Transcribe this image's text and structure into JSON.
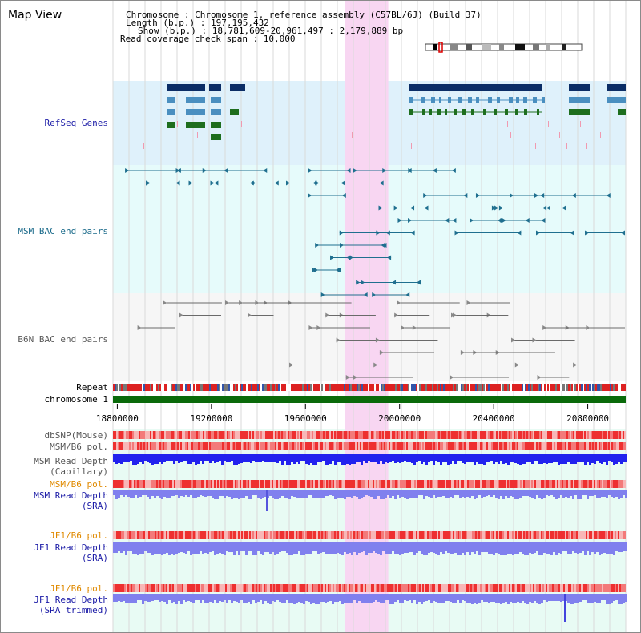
{
  "view": {
    "title": "Map View",
    "region_start_bp": 18781609,
    "region_end_bp": 20961497,
    "highlight_start_bp": 19768000,
    "highlight_end_bp": 19952000
  },
  "info": {
    "chromosome": "Chromosome      : Chromosome 1, reference assembly (C57BL/6J) (Build 37)",
    "length": "Length (b.p.) : 197,195,432",
    "show": "Show (b.p.) : 18,781,609-20,961,497 : 2,179,889 bp",
    "coverage": "Read coverage check span : 10,000"
  },
  "tracks": {
    "refseq": {
      "label": "RefSeq Genes",
      "color": "#1a1aa6"
    },
    "msm_bac": {
      "label": "MSM BAC end pairs",
      "color": "#1a6a8a"
    },
    "b6n_bac": {
      "label": "B6N BAC end pairs",
      "color": "#5a5a5a"
    },
    "repeat": {
      "label": "Repeat"
    },
    "chromosome": {
      "label": "chromosome 1",
      "color": "#0a6a0a"
    }
  },
  "axis": {
    "ticks": [
      {
        "value": 18800000,
        "label": "18800000"
      },
      {
        "value": 19200000,
        "label": "19200000"
      },
      {
        "value": 19600000,
        "label": "19600000"
      },
      {
        "value": 20000000,
        "label": "20000000"
      },
      {
        "value": 20400000,
        "label": "20400000"
      },
      {
        "value": 20800000,
        "label": "20800000"
      }
    ]
  },
  "lower_tracks": [
    {
      "label": "dbSNP(Mouse)",
      "color": "#555555"
    },
    {
      "label": "MSM/B6 pol.",
      "color": "#555555"
    },
    {
      "label": "MSM Read Depth\n(Capillary)",
      "color": "#555555"
    },
    {
      "label": "MSM/B6 pol.",
      "color": "#e08a00"
    },
    {
      "label": "MSM Read Depth\n(SRA)",
      "color": "#1a1aa6"
    },
    {
      "label": "JF1/B6 pol.",
      "color": "#e08a00"
    },
    {
      "label": "JF1 Read Depth\n(SRA)",
      "color": "#1a1aa6"
    },
    {
      "label": "JF1/B6 pol.",
      "color": "#e08a00"
    },
    {
      "label": "JF1 Read Depth\n(SRA trimmed)",
      "color": "#1a1aa6"
    }
  ],
  "colors": {
    "refseq_bg": "#dff1fb",
    "bac_bg": "#e6fbfb",
    "highlight": "#f8d6f2",
    "gene_dark": "#0b2d66",
    "gene_mid": "#4a8fc0",
    "gene_green": "#1e6e1e",
    "msm_pair": "#1f6f8f",
    "b6n_pair": "#6a6a6a",
    "depth_blue": "#2222ee",
    "depth_sra": "#8080ee",
    "pol_red": "#ee3333"
  }
}
